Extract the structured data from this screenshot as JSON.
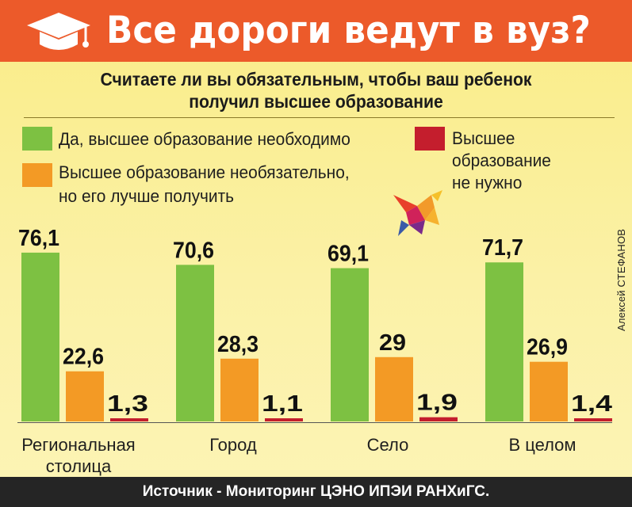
{
  "header": {
    "title": "Все дороги ведут в вуз?",
    "icon": "graduation-cap-icon"
  },
  "question": {
    "line1": "Считаете ли вы обязательным, чтобы ваш ребенок",
    "line2": "получил высшее образование"
  },
  "legend": [
    {
      "color": "#7dc142",
      "lines": [
        "Да, высшее образование необходимо"
      ]
    },
    {
      "color": "#f39a25",
      "lines": [
        "Высшее образование необязательно,",
        "но его лучше получить"
      ]
    },
    {
      "color": "#c41e2d",
      "lines": [
        "Высшее",
        "образование",
        "не нужно"
      ]
    }
  ],
  "author": "Алексей СТЕФАНОВ",
  "decor": {
    "bird_icon": "bird-logo-icon"
  },
  "chart_data": {
    "type": "bar",
    "title": "",
    "xlabel": "",
    "ylabel": "",
    "categories": [
      [
        "Региональная",
        "столица"
      ],
      [
        "Город"
      ],
      [
        "Село"
      ],
      [
        "В целом"
      ]
    ],
    "series": [
      {
        "name": "Да, высшее образование необходимо",
        "color": "#7dc142",
        "values": [
          76.1,
          70.6,
          69.1,
          71.7
        ],
        "labels": [
          "76,1",
          "70,6",
          "69,1",
          "71,7"
        ]
      },
      {
        "name": "Высшее образование необязательно, но его лучше получить",
        "color": "#f39a25",
        "values": [
          22.6,
          28.3,
          29,
          26.9
        ],
        "labels": [
          "22,6",
          "28,3",
          "29",
          "26,9"
        ]
      },
      {
        "name": "Высшее образование не нужно",
        "color": "#c41e2d",
        "values": [
          1.3,
          1.1,
          1.9,
          1.4
        ],
        "labels": [
          "1,3",
          "1,1",
          "1,9",
          "1,4"
        ]
      }
    ],
    "ylim": [
      0,
      80
    ],
    "grid": false,
    "legend_position": "top"
  },
  "footer": {
    "source": "Источник - Мониторинг ЦЭНО ИПЭИ РАНХиГС."
  }
}
